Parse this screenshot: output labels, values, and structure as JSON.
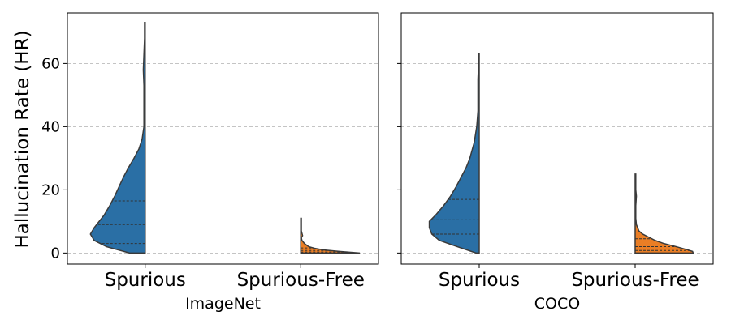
{
  "chart_data": {
    "type": "violin",
    "ylabel": "Hallucination Rate (HR)",
    "ylim": [
      -3.5,
      76
    ],
    "yticks": [
      0,
      20,
      40,
      60
    ],
    "grid": "y-dashed",
    "categories": [
      "Spurious",
      "Spurious-Free"
    ],
    "colors": {
      "Spurious": "#2a6fa5",
      "Spurious-Free": "#ea7e25"
    },
    "panels": [
      {
        "xlabel": "ImageNet",
        "violins": [
          {
            "category": "Spurious",
            "color": "#2a6fa5",
            "max": 73,
            "quartiles": [
              3,
              9,
              16.5
            ],
            "profile": [
              [
                0,
                0.25
              ],
              [
                2,
                0.62
              ],
              [
                4,
                0.82
              ],
              [
                6,
                0.88
              ],
              [
                8,
                0.82
              ],
              [
                10,
                0.74
              ],
              [
                12,
                0.66
              ],
              [
                15,
                0.57
              ],
              [
                18,
                0.49
              ],
              [
                21,
                0.42
              ],
              [
                24,
                0.35
              ],
              [
                27,
                0.27
              ],
              [
                30,
                0.18
              ],
              [
                33,
                0.1
              ],
              [
                36,
                0.05
              ],
              [
                40,
                0.02
              ],
              [
                43,
                0.02
              ],
              [
                47,
                0.02
              ],
              [
                50,
                0.02
              ],
              [
                53,
                0.02
              ],
              [
                58,
                0.03
              ],
              [
                63,
                0.02
              ],
              [
                68,
                0.01
              ],
              [
                72,
                0.01
              ],
              [
                73,
                0.01
              ]
            ]
          },
          {
            "category": "Spurious-Free",
            "color": "#ea7e25",
            "max": 11,
            "quartiles": [
              0.3,
              0.8,
              1.6
            ],
            "profile": [
              [
                0,
                0.95
              ],
              [
                0.5,
                0.62
              ],
              [
                1,
                0.36
              ],
              [
                1.5,
                0.22
              ],
              [
                2,
                0.13
              ],
              [
                3,
                0.06
              ],
              [
                4,
                0.02
              ],
              [
                4.8,
                0.01
              ],
              [
                5.5,
                0.03
              ],
              [
                7,
                0.01
              ],
              [
                9,
                0.01
              ],
              [
                11,
                0.01
              ]
            ]
          }
        ]
      },
      {
        "xlabel": "COCO",
        "violins": [
          {
            "category": "Spurious",
            "color": "#2a6fa5",
            "max": 63,
            "quartiles": [
              6,
              10.5,
              17
            ],
            "profile": [
              [
                0,
                0.05
              ],
              [
                2,
                0.35
              ],
              [
                4,
                0.64
              ],
              [
                6,
                0.76
              ],
              [
                8,
                0.8
              ],
              [
                10,
                0.8
              ],
              [
                12,
                0.7
              ],
              [
                15,
                0.57
              ],
              [
                18,
                0.46
              ],
              [
                21,
                0.37
              ],
              [
                24,
                0.29
              ],
              [
                27,
                0.21
              ],
              [
                30,
                0.15
              ],
              [
                35,
                0.08
              ],
              [
                40,
                0.04
              ],
              [
                45,
                0.02
              ],
              [
                50,
                0.02
              ],
              [
                55,
                0.02
              ],
              [
                60,
                0.01
              ],
              [
                63,
                0.01
              ]
            ]
          },
          {
            "category": "Spurious-Free",
            "color": "#ea7e25",
            "max": 25,
            "quartiles": [
              0.8,
              2,
              4.5
            ],
            "profile": [
              [
                0,
                0.93
              ],
              [
                0.5,
                0.92
              ],
              [
                1,
                0.84
              ],
              [
                2,
                0.66
              ],
              [
                3,
                0.46
              ],
              [
                4,
                0.32
              ],
              [
                5,
                0.22
              ],
              [
                6,
                0.12
              ],
              [
                7,
                0.06
              ],
              [
                9,
                0.02
              ],
              [
                11,
                0.01
              ],
              [
                15,
                0.01
              ],
              [
                18,
                0.02
              ],
              [
                20,
                0.01
              ],
              [
                23,
                0.01
              ],
              [
                25,
                0.01
              ]
            ]
          }
        ]
      }
    ]
  }
}
